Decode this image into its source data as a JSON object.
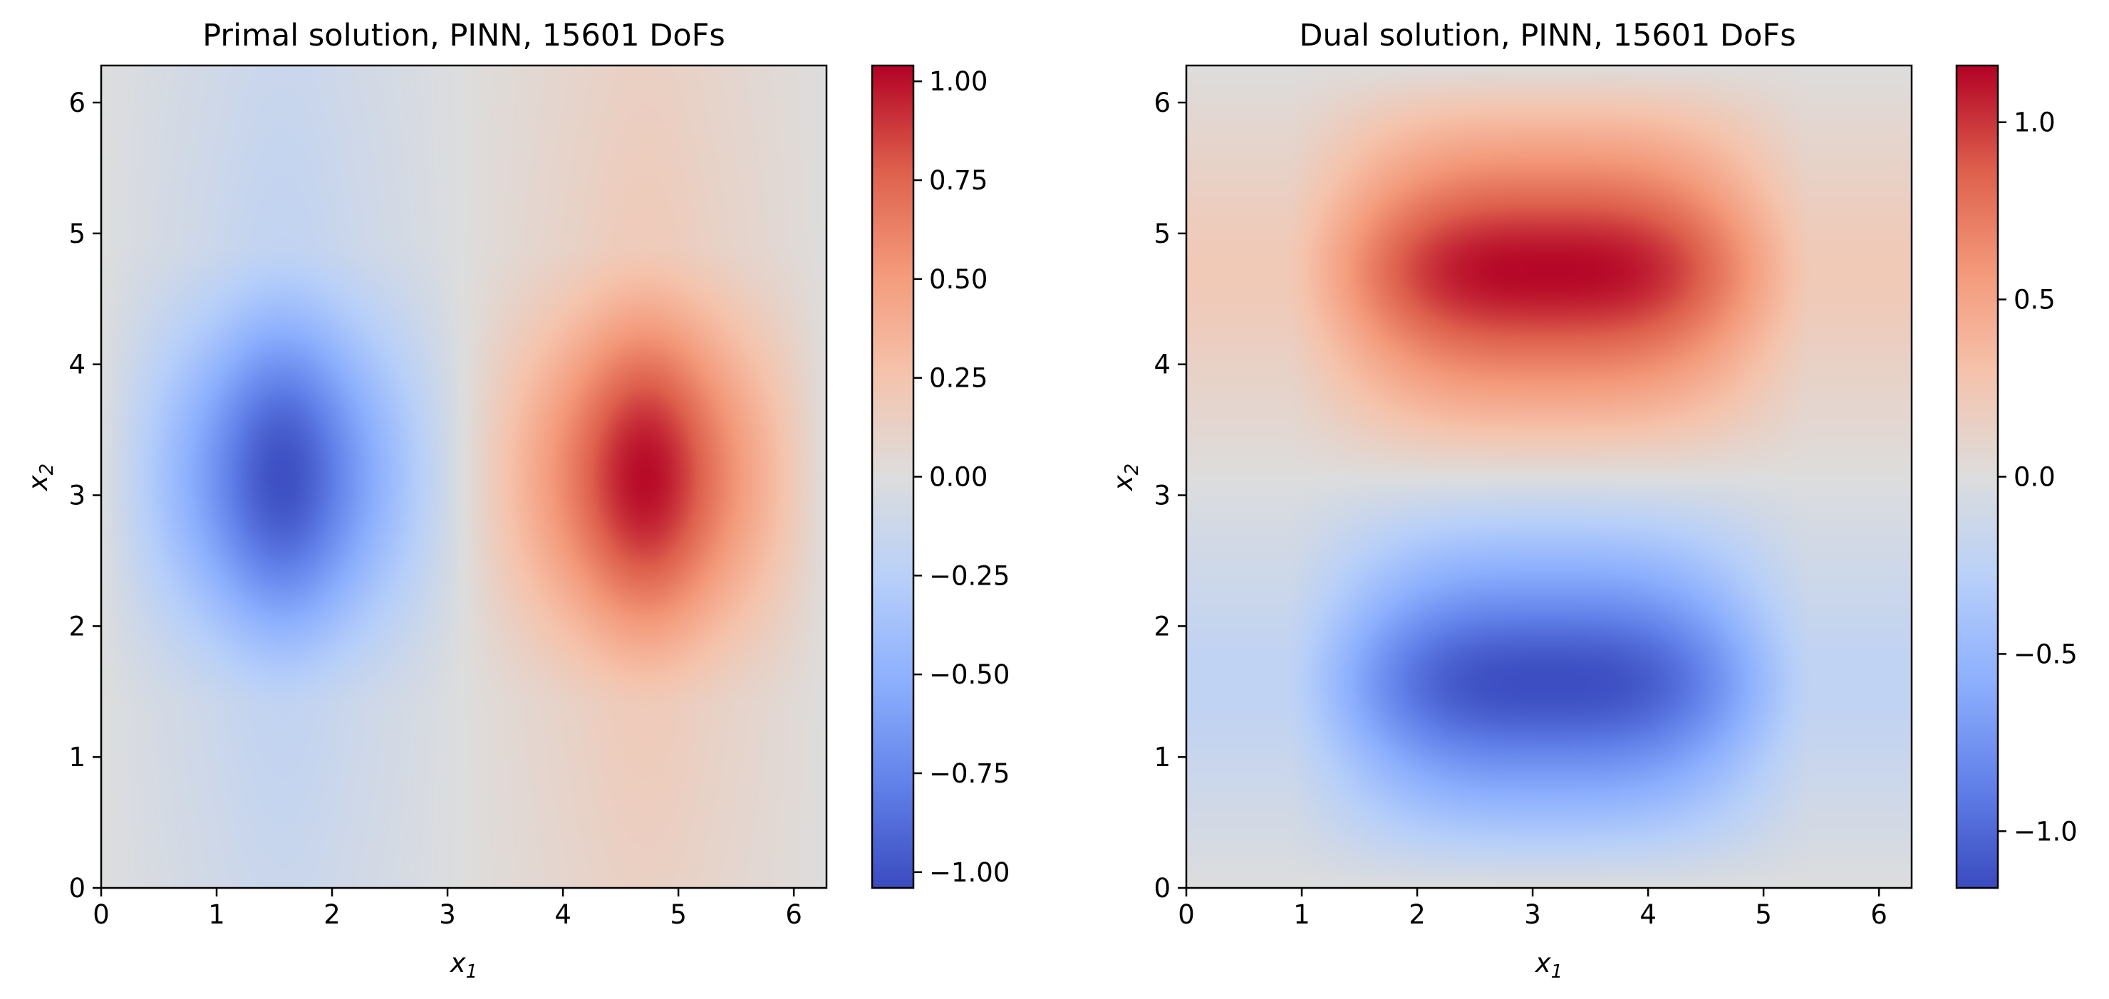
{
  "chart_data": [
    {
      "type": "heatmap",
      "title": "Primal solution, PINN, 15601 DoFs",
      "xlabel": "x",
      "xlabel_sub": "1",
      "ylabel": "x",
      "ylabel_sub": "2",
      "xlim": [
        0,
        6.283
      ],
      "ylim": [
        0,
        6.283
      ],
      "xticks": [
        0,
        1,
        2,
        3,
        4,
        5,
        6
      ],
      "yticks": [
        0,
        1,
        2,
        3,
        4,
        5,
        6
      ],
      "xtick_labels": [
        "0",
        "1",
        "2",
        "3",
        "4",
        "5",
        "6"
      ],
      "ytick_labels": [
        "0",
        "1",
        "2",
        "3",
        "4",
        "5",
        "6"
      ],
      "field": "primal: extrema at (1.57, 3.14) = -1.02 and (4.71, 3.14) = +1.02",
      "colormap": "coolwarm",
      "colorbar": {
        "range": [
          -1.04,
          1.04
        ],
        "ticks": [
          -1.0,
          -0.75,
          -0.5,
          -0.25,
          0.0,
          0.25,
          0.5,
          0.75,
          1.0
        ],
        "tick_labels": [
          "−1.00",
          "−0.75",
          "−0.50",
          "−0.25",
          "0.00",
          "0.25",
          "0.50",
          "0.75",
          "1.00"
        ]
      }
    },
    {
      "type": "heatmap",
      "title": "Dual solution, PINN, 15601 DoFs",
      "xlabel": "x",
      "xlabel_sub": "1",
      "ylabel": "x",
      "ylabel_sub": "2",
      "xlim": [
        0,
        6.283
      ],
      "ylim": [
        0,
        6.283
      ],
      "xticks": [
        0,
        1,
        2,
        3,
        4,
        5,
        6
      ],
      "yticks": [
        0,
        1,
        2,
        3,
        4,
        5,
        6
      ],
      "xtick_labels": [
        "0",
        "1",
        "2",
        "3",
        "4",
        "5",
        "6"
      ],
      "ytick_labels": [
        "0",
        "1",
        "2",
        "3",
        "4",
        "5",
        "6"
      ],
      "field": "dual: extrema at (3.14, 1.57) = -1.15 and (3.14, 4.71) = +1.15",
      "colormap": "coolwarm",
      "colorbar": {
        "range": [
          -1.16,
          1.16
        ],
        "ticks": [
          -1.0,
          -0.5,
          0.0,
          0.5,
          1.0
        ],
        "tick_labels": [
          "−1.0",
          "−0.5",
          "0.0",
          "0.5",
          "1.0"
        ]
      }
    }
  ]
}
